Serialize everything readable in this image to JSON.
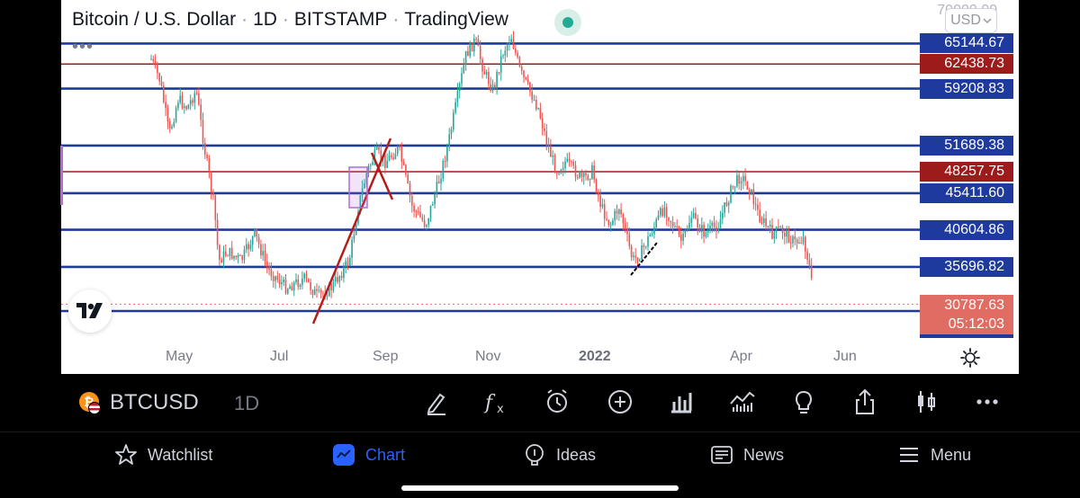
{
  "header": {
    "title_parts": [
      "Bitcoin / U.S. Dollar",
      "1D",
      "BITSTAMP",
      "TradingView"
    ],
    "currency": "USD",
    "currency_chevron_icon": "chevron-down-icon",
    "menu_icon": "more-horizontal-icon"
  },
  "price_axis": {
    "top_label": "70000.00",
    "levels": [
      {
        "price": 65144.67,
        "label": "65144.67",
        "color": "#1e3a9e"
      },
      {
        "price": 62438.73,
        "label": "62438.73",
        "color": "#9e1b1b"
      },
      {
        "price": 59208.83,
        "label": "59208.83",
        "color": "#1e3a9e"
      },
      {
        "price": 51689.38,
        "label": "51689.38",
        "color": "#1e3a9e"
      },
      {
        "price": 48257.75,
        "label": "48257.75",
        "color": "#9e1b1b"
      },
      {
        "price": 45411.6,
        "label": "45411.60",
        "color": "#1e3a9e"
      },
      {
        "price": 40604.86,
        "label": "40604.86",
        "color": "#1e3a9e"
      },
      {
        "price": 35696.82,
        "label": "35696.82",
        "color": "#1e3a9e"
      }
    ],
    "current_price": "30787.63",
    "countdown": "05:12:03"
  },
  "time_axis": {
    "ticks": [
      "May",
      "Jul",
      "Sep",
      "Nov",
      "2022",
      "Apr",
      "Jun"
    ],
    "settings_icon": "gear-icon"
  },
  "colors": {
    "up": "#26a69a",
    "down": "#ef5350",
    "support_line": "#1e3a9e",
    "resistance_line": "#9e1b1b",
    "trend_line": "#b71c1c",
    "accent": "#2962ff"
  },
  "symbol_bar": {
    "symbol": "BTCUSD",
    "timeframe": "1D",
    "tools": [
      "draw-icon",
      "indicators-icon",
      "alert-clock-icon",
      "add-icon",
      "bar-chart-icon",
      "compare-icon",
      "ideas-lightbulb-icon",
      "share-icon",
      "candles-icon",
      "more-icon"
    ]
  },
  "bottom_nav": {
    "items": [
      {
        "label": "Watchlist",
        "icon": "star-icon"
      },
      {
        "label": "Chart",
        "icon": "chart-icon"
      },
      {
        "label": "Ideas",
        "icon": "lightbulb-icon"
      },
      {
        "label": "News",
        "icon": "news-icon"
      },
      {
        "label": "Menu",
        "icon": "hamburger-icon"
      }
    ],
    "active": "Chart"
  }
}
